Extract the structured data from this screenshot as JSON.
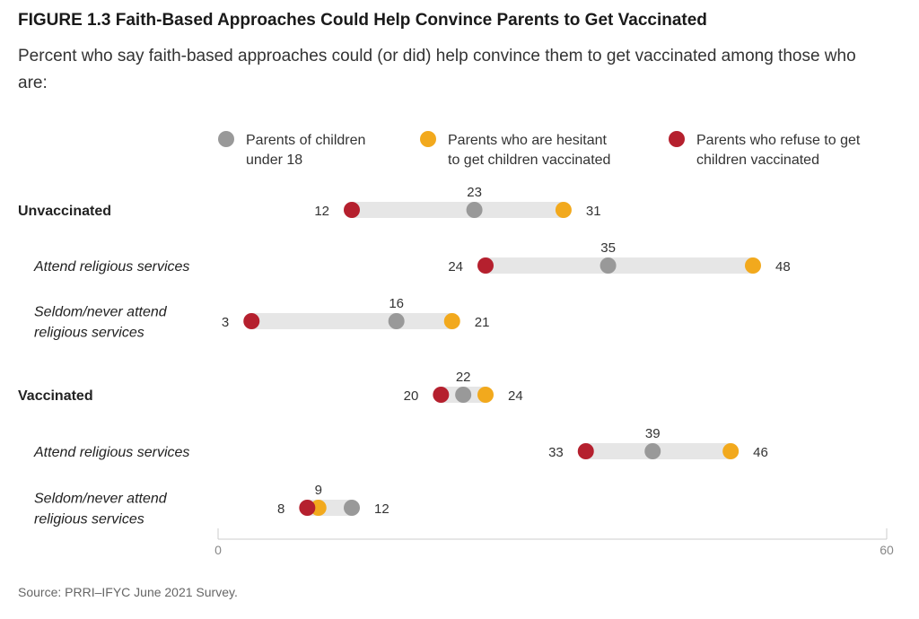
{
  "title": "FIGURE 1.3  Faith-Based Approaches Could Help Convince Parents to Get Vaccinated",
  "subtitle": "Percent who say faith-based approaches could (or did) help convince them to get vaccinated among those who are:",
  "source": "Source: PRRI–IFYC June 2021 Survey.",
  "colors": {
    "parents": "#999999",
    "hesitant": "#f2a91d",
    "refuse": "#b5202e",
    "range_bar": "#e6e6e6",
    "axis": "#cccccc"
  },
  "chart_data": {
    "type": "dot",
    "xlim": [
      0,
      60
    ],
    "x_ticks": [
      "0",
      "60"
    ],
    "series": [
      {
        "key": "parents",
        "name": "Parents of children under 18",
        "legend_lines": [
          "Parents of children",
          "under 18"
        ]
      },
      {
        "key": "hesitant",
        "name": "Parents who are hesitant to get children vaccinated",
        "legend_lines": [
          "Parents who are hesitant",
          "to get children vaccinated"
        ]
      },
      {
        "key": "refuse",
        "name": "Parents who refuse to get children vaccinated",
        "legend_lines": [
          "Parents who refuse to get",
          "children vaccinated"
        ]
      }
    ],
    "rows": [
      {
        "label_lines": [
          "Unvaccinated"
        ],
        "style": "bold",
        "parents": 23,
        "hesitant": 31,
        "refuse": 12
      },
      {
        "label_lines": [
          "Attend religious services"
        ],
        "style": "italic",
        "parents": 35,
        "hesitant": 48,
        "refuse": 24
      },
      {
        "label_lines": [
          "Seldom/never attend",
          "religious services"
        ],
        "style": "italic",
        "parents": 16,
        "hesitant": 21,
        "refuse": 3
      },
      {
        "label_lines": [
          "Vaccinated"
        ],
        "style": "bold",
        "parents": 22,
        "hesitant": 24,
        "refuse": 20
      },
      {
        "label_lines": [
          "Attend religious services"
        ],
        "style": "italic",
        "parents": 39,
        "hesitant": 46,
        "refuse": 33
      },
      {
        "label_lines": [
          "Seldom/never attend",
          "religious services"
        ],
        "style": "italic",
        "parents": 12,
        "hesitant": 9,
        "refuse": 8
      }
    ]
  }
}
